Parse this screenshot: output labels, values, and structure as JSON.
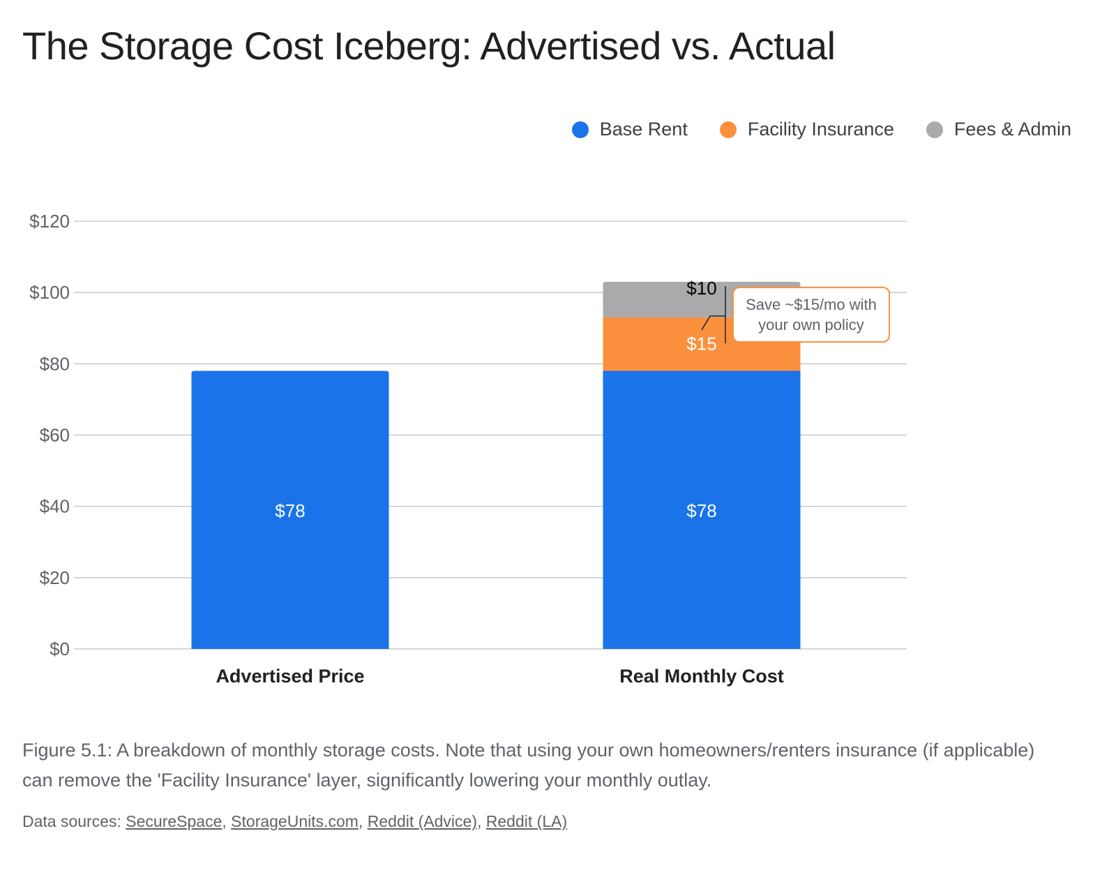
{
  "title": "The Storage Cost Iceberg: Advertised vs. Actual",
  "legend": [
    {
      "label": "Base Rent",
      "color": "#1a73e8"
    },
    {
      "label": "Facility Insurance",
      "color": "#fa903e"
    },
    {
      "label": "Fees & Admin",
      "color": "#aaaaaa"
    }
  ],
  "chart_data": {
    "type": "bar",
    "stacked": true,
    "categories": [
      "Advertised Price",
      "Real Monthly Cost"
    ],
    "series": [
      {
        "name": "Base Rent",
        "values": [
          78,
          78
        ],
        "color": "#1a73e8",
        "labels": [
          "$78",
          "$78"
        ]
      },
      {
        "name": "Facility Insurance",
        "values": [
          0,
          15
        ],
        "color": "#fa903e",
        "labels": [
          "",
          "$15"
        ]
      },
      {
        "name": "Fees & Admin",
        "values": [
          0,
          10
        ],
        "color": "#aaaaaa",
        "labels": [
          "",
          "$10"
        ]
      }
    ],
    "ylim": [
      0,
      120
    ],
    "yticks": [
      0,
      20,
      40,
      60,
      80,
      100,
      120
    ],
    "ytick_labels": [
      "$0",
      "$20",
      "$40",
      "$60",
      "$80",
      "$100",
      "$120"
    ],
    "grid": true,
    "legend_position": "top-right",
    "annotation": "Save ~$15/mo with your own policy"
  },
  "caption": "Figure 5.1: A breakdown of monthly storage costs. Note that using your own homeowners/renters insurance (if applicable) can remove the 'Facility Insurance' layer, significantly lowering your monthly outlay.",
  "sources": {
    "prefix": "Data sources:",
    "links": [
      "SecureSpace",
      "StorageUnits.com",
      "Reddit (Advice)",
      "Reddit (LA)"
    ]
  }
}
